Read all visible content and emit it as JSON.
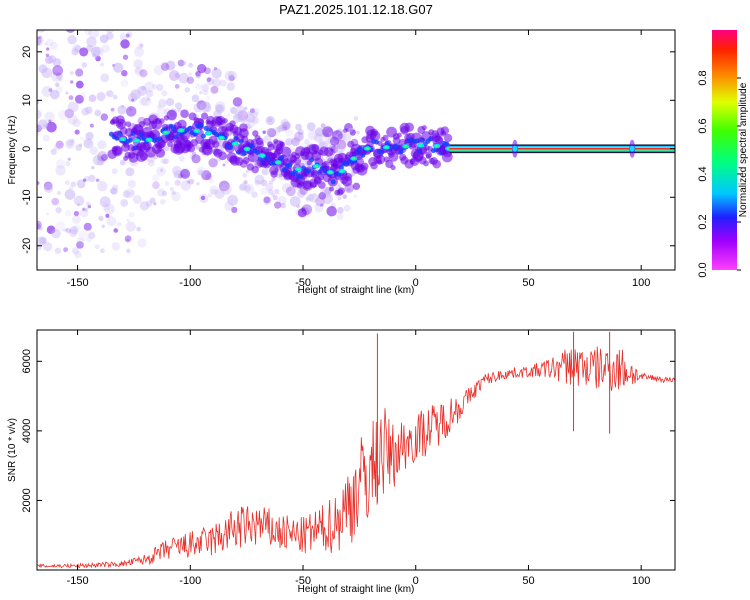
{
  "title": "PAZ1.2025.101.12.18.G07",
  "colors": {
    "snr_line": "#e8302a",
    "spectral_ridge": "#ff2020",
    "scatter_low": "#d8c8f8",
    "scatter_high": "#6a00e8",
    "axes": "#000000"
  },
  "chart_data": [
    {
      "type": "heatmap",
      "title": "PAZ1.2025.101.12.18.G07",
      "xlabel": "Height of straight line (km)",
      "ylabel": "Frequency (Hz)",
      "colorbar_label": "Normalized spectral amplitude",
      "colormap": "rainbow",
      "xlim": [
        -168,
        115
      ],
      "ylim": [
        -25,
        24.5
      ],
      "xticks": [
        -150,
        -100,
        -50,
        0,
        50,
        100
      ],
      "yticks": [
        -20,
        -10,
        0,
        10,
        20
      ],
      "colorbar_ticks": [
        0.0,
        0.2,
        0.4,
        0.6,
        0.8
      ],
      "colorbar_range": [
        0,
        1
      ],
      "ridge": {
        "x": [
          -130,
          -120,
          -110,
          -100,
          -90,
          -80,
          -70,
          -60,
          -50,
          -45,
          -40,
          -35,
          -30,
          -25,
          -20,
          -15,
          -10,
          -5,
          0,
          5,
          10,
          15,
          30,
          50,
          70,
          90,
          115
        ],
        "y": [
          2,
          1.5,
          3.5,
          4,
          3,
          1,
          -1,
          -3,
          -4.5,
          -3.5,
          -4,
          -6,
          -3,
          -1,
          0.5,
          0.5,
          0,
          0.5,
          0.5,
          1,
          0.5,
          0,
          0,
          0,
          0,
          0,
          0
        ]
      },
      "stable_band_x": [
        15,
        115
      ]
    },
    {
      "type": "line",
      "xlabel": "Height of straight line (km)",
      "ylabel": "SNR (10 * v/v)",
      "xlim": [
        -168,
        115
      ],
      "ylim": [
        0,
        6900
      ],
      "xticks": [
        -150,
        -100,
        -50,
        0,
        50,
        100
      ],
      "yticks": [
        2000,
        4000,
        6000
      ],
      "series": [
        {
          "color": "#e8302a",
          "x": [
            -168,
            -150,
            -130,
            -120,
            -110,
            -100,
            -90,
            -80,
            -70,
            -60,
            -50,
            -40,
            -35,
            -30,
            -25,
            -20,
            -15,
            -10,
            -5,
            0,
            5,
            10,
            15,
            20,
            25,
            30,
            35,
            40,
            50,
            60,
            70,
            80,
            90,
            95,
            100,
            105,
            110,
            115
          ],
          "values": [
            100,
            100,
            150,
            250,
            500,
            600,
            700,
            1000,
            1100,
            900,
            800,
            1000,
            1100,
            1500,
            2000,
            2400,
            3000,
            3000,
            3400,
            3600,
            3800,
            4000,
            4300,
            4600,
            5000,
            5400,
            5500,
            5600,
            5650,
            5700,
            5700,
            5600,
            5600,
            5550,
            5500,
            5500,
            5450,
            5450
          ],
          "noise": [
            60,
            80,
            100,
            200,
            400,
            500,
            600,
            800,
            800,
            700,
            700,
            900,
            1200,
            1500,
            1800,
            1800,
            1800,
            1200,
            1000,
            900,
            900,
            800,
            700,
            500,
            300,
            250,
            200,
            200,
            200,
            400,
            800,
            800,
            900,
            600,
            150,
            120,
            100,
            100
          ]
        }
      ],
      "spikes": [
        {
          "x": -17,
          "y": 6800
        },
        {
          "x": 70,
          "y": 6850
        },
        {
          "x": 86,
          "y": 6850
        }
      ]
    }
  ]
}
